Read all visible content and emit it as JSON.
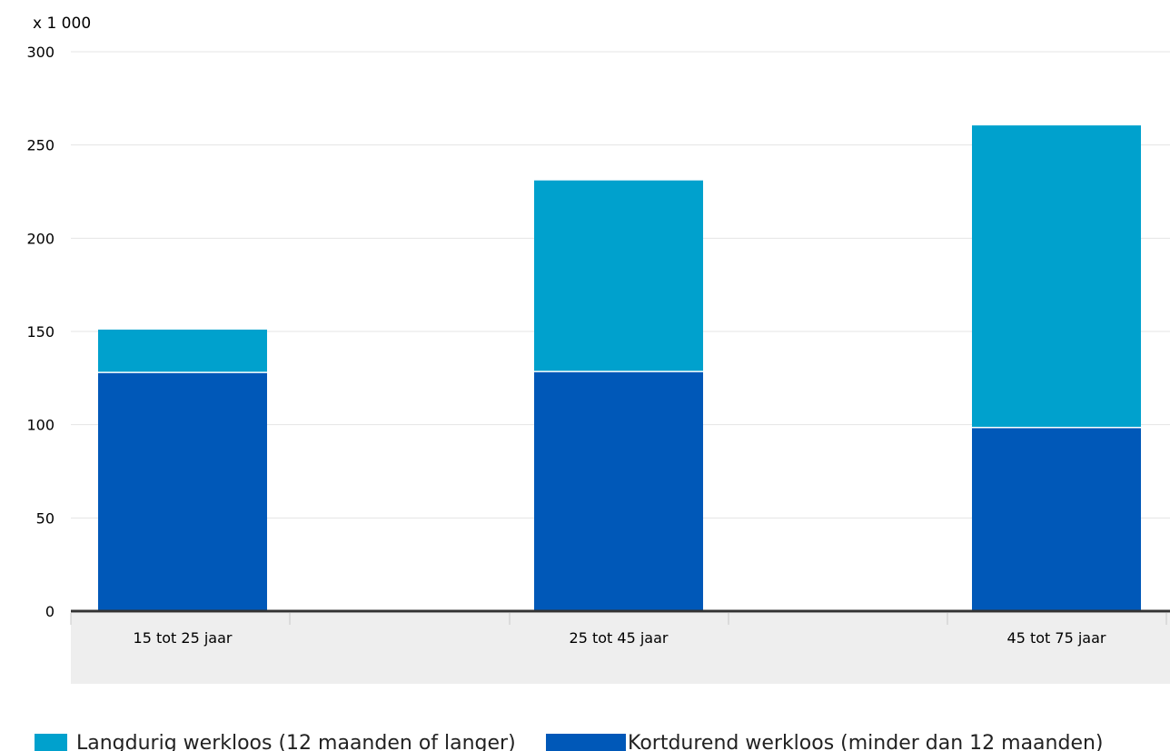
{
  "chart_data": {
    "type": "bar",
    "stacked": true,
    "unit_label": "x 1 000",
    "categories": [
      "15 tot 25 jaar",
      "25 tot 45 jaar",
      "45 tot 75 jaar"
    ],
    "series": [
      {
        "name": "Kortdurend werkloos (minder dan 12 maanden)",
        "color": "#0058B8",
        "values": [
          128,
          128.5,
          98.5
        ]
      },
      {
        "name": "Langdurig werkloos (12 maanden of langer)",
        "color": "#00A1CD",
        "values": [
          23,
          102.5,
          162
        ]
      }
    ],
    "ylim": [
      0,
      300
    ],
    "yticks": [
      0,
      50,
      100,
      150,
      200,
      250,
      300
    ],
    "grid": true,
    "legend_position": "bottom",
    "legend_order": [
      "Langdurig werkloos (12 maanden of langer)",
      "Kortdurend werkloos (minder dan 12 maanden)"
    ]
  }
}
